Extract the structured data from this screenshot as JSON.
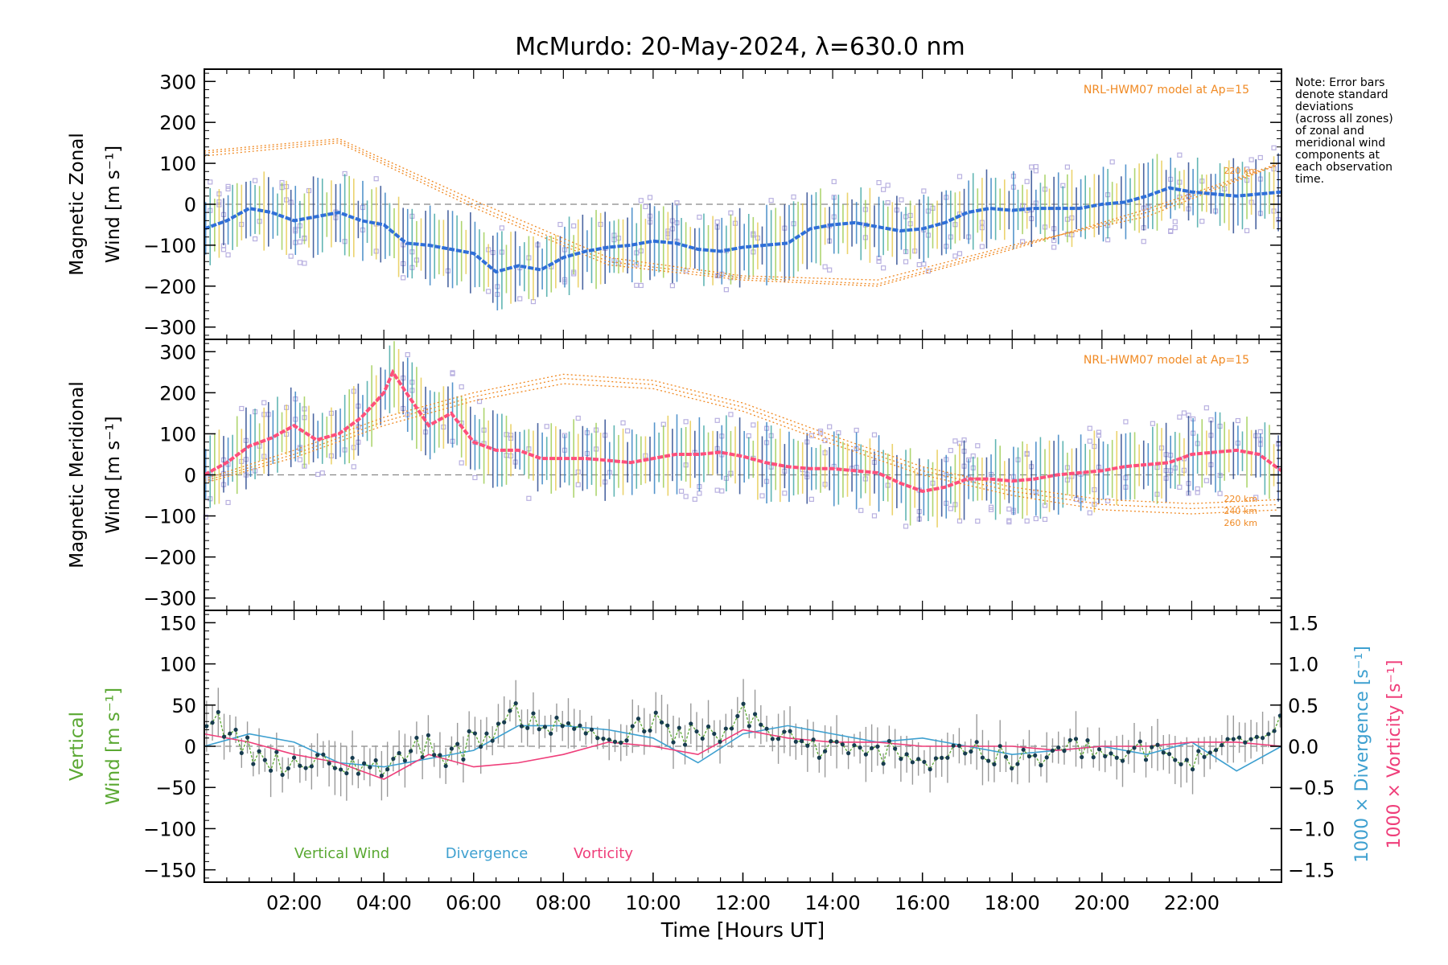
{
  "title": "McMurdo: 20-May-2024, λ=630.0 nm",
  "note_lines": [
    "Note: Error bars",
    "denote standard",
    "deviations",
    "(across all zones)",
    "of zonal and",
    "meridional wind",
    "components at",
    "each observation",
    "time."
  ],
  "colors": {
    "axis": "#000000",
    "model": "#f08a24",
    "zonal": "#2f6fd8",
    "zonal_light": "#6fb6e8",
    "meridional": "#ff4f7b",
    "vertical": "#5aa832",
    "divergence": "#3ea0d0",
    "vorticity": "#ef3e7a",
    "zone_points": "#b8b0e0",
    "errorbar": "#4a4a4a",
    "dash": "#888888"
  },
  "chart_data": [
    {
      "type": "line",
      "name": "zonal",
      "ylabel_lines": [
        "Magnetic Zonal",
        "Wind [m s⁻¹]"
      ],
      "ylim": [
        -330,
        330
      ],
      "yticks": [
        -300,
        -200,
        -100,
        0,
        100,
        200,
        300
      ],
      "xlim": [
        0.0,
        24.0
      ],
      "model_label": "NRL-HWM07 model at Ap=15",
      "model_alt_labels": [
        "220 km"
      ],
      "series": [
        {
          "x": [
            0.0,
            0.5,
            1.0,
            1.5,
            2.0,
            2.5,
            3.0,
            3.5,
            4.0,
            4.5,
            5.0,
            5.5,
            6.0,
            6.5,
            7.0,
            7.5,
            8.0,
            8.5,
            9.0,
            9.5,
            10.0,
            10.5,
            11.0,
            11.5,
            12.0,
            12.5,
            13.0,
            13.5,
            14.0,
            14.5,
            15.0,
            15.5,
            16.0,
            16.5,
            17.0,
            17.5,
            18.0,
            18.5,
            19.0,
            19.5,
            20.0,
            20.5,
            21.0,
            21.5,
            22.0,
            22.5,
            23.0,
            23.5,
            24.0
          ],
          "y": [
            -60,
            -40,
            -10,
            -20,
            -40,
            -30,
            -20,
            -40,
            -50,
            -95,
            -100,
            -110,
            -120,
            -165,
            -150,
            -160,
            -130,
            -115,
            -105,
            -100,
            -90,
            -95,
            -110,
            -115,
            -105,
            -100,
            -95,
            -60,
            -50,
            -45,
            -55,
            -65,
            -60,
            -45,
            -20,
            -10,
            -15,
            -10,
            -10,
            -10,
            0,
            5,
            20,
            40,
            30,
            25,
            20,
            25,
            30
          ]
        }
      ],
      "model": [
        {
          "alt": "220 km",
          "x": [
            0,
            3,
            6,
            9,
            12,
            15,
            18,
            21,
            24
          ],
          "y": [
            130,
            160,
            10,
            -130,
            -175,
            -185,
            -100,
            -30,
            100
          ]
        },
        {
          "alt": "240 km",
          "x": [
            0,
            3,
            6,
            9,
            12,
            15,
            18,
            21,
            24
          ],
          "y": [
            125,
            155,
            0,
            -140,
            -180,
            -195,
            -105,
            -20,
            100
          ]
        },
        {
          "alt": "260 km",
          "x": [
            0,
            3,
            6,
            9,
            12,
            15,
            18,
            21,
            24
          ],
          "y": [
            118,
            150,
            -8,
            -148,
            -185,
            -200,
            -110,
            -12,
            102
          ]
        }
      ]
    },
    {
      "type": "line",
      "name": "meridional",
      "ylabel_lines": [
        "Magnetic Meridional",
        "Wind [m s⁻¹]"
      ],
      "ylim": [
        -330,
        330
      ],
      "yticks": [
        -300,
        -200,
        -100,
        0,
        100,
        200,
        300
      ],
      "xlim": [
        0.0,
        24.0
      ],
      "model_label": "NRL-HWM07 model at Ap=15",
      "model_alt_labels": [
        "220 km",
        "240 km",
        "260 km"
      ],
      "series": [
        {
          "x": [
            0.0,
            0.5,
            1.0,
            1.5,
            2.0,
            2.5,
            3.0,
            3.5,
            4.0,
            4.2,
            4.5,
            5.0,
            5.5,
            6.0,
            6.5,
            7.0,
            7.5,
            8.0,
            8.5,
            9.0,
            9.5,
            10.0,
            10.5,
            11.0,
            11.5,
            12.0,
            12.5,
            13.0,
            13.5,
            14.0,
            14.5,
            15.0,
            15.5,
            16.0,
            16.5,
            17.0,
            17.5,
            18.0,
            18.5,
            19.0,
            19.5,
            20.0,
            20.5,
            21.0,
            21.5,
            22.0,
            22.5,
            23.0,
            23.5,
            24.0
          ],
          "y": [
            0,
            30,
            70,
            90,
            120,
            85,
            100,
            140,
            200,
            250,
            200,
            120,
            150,
            80,
            60,
            60,
            40,
            40,
            40,
            35,
            30,
            40,
            50,
            50,
            55,
            45,
            30,
            20,
            15,
            15,
            10,
            5,
            -20,
            -40,
            -30,
            -10,
            -10,
            -15,
            -10,
            0,
            5,
            10,
            20,
            25,
            30,
            50,
            55,
            60,
            50,
            10
          ]
        }
      ],
      "model": [
        {
          "alt": "220 km",
          "x": [
            0,
            2,
            4,
            6,
            8,
            10,
            12,
            14,
            16,
            18,
            20,
            22,
            24
          ],
          "y": [
            -10,
            60,
            140,
            200,
            245,
            230,
            175,
            95,
            20,
            -30,
            -60,
            -70,
            -60
          ]
        },
        {
          "alt": "240 km",
          "x": [
            0,
            2,
            4,
            6,
            8,
            10,
            12,
            14,
            16,
            18,
            20,
            22,
            24
          ],
          "y": [
            -15,
            50,
            130,
            190,
            235,
            220,
            165,
            85,
            10,
            -40,
            -72,
            -82,
            -72
          ]
        },
        {
          "alt": "260 km",
          "x": [
            0,
            2,
            4,
            6,
            8,
            10,
            12,
            14,
            16,
            18,
            20,
            22,
            24
          ],
          "y": [
            -20,
            42,
            120,
            180,
            222,
            210,
            155,
            75,
            0,
            -50,
            -85,
            -95,
            -85
          ]
        }
      ]
    },
    {
      "type": "line",
      "name": "vertical",
      "ylabel_left": [
        "Vertical",
        "Wind [m s⁻¹]"
      ],
      "ylabel_right": [
        "1000 × Divergence [s⁻¹]",
        "1000 × Vorticity [s⁻¹]"
      ],
      "ylim": [
        -165,
        165
      ],
      "yticks": [
        -150,
        -100,
        -50,
        0,
        50,
        100,
        150
      ],
      "y2lim": [
        -1.65,
        1.65
      ],
      "y2ticks": [
        -1.5,
        -1.0,
        -0.5,
        0.0,
        0.5,
        1.0,
        1.5
      ],
      "y2ticklabels": [
        "−1.5",
        "−1.0",
        "−0.5",
        "0.0",
        "0.5",
        "1.0",
        "1.5"
      ],
      "xlim": [
        0.0,
        24.0
      ],
      "xticks": [
        2,
        4,
        6,
        8,
        10,
        12,
        14,
        16,
        18,
        20,
        22
      ],
      "xticklabels": [
        "02:00",
        "04:00",
        "06:00",
        "08:00",
        "10:00",
        "12:00",
        "14:00",
        "16:00",
        "18:00",
        "20:00",
        "22:00"
      ],
      "xlabel": "Time [Hours UT]",
      "legend": [
        "Vertical Wind",
        "Divergence",
        "Vorticity"
      ],
      "series": [
        {
          "name": "Vertical Wind",
          "x": [
            0.0,
            0.5,
            1.0,
            1.5,
            2.0,
            2.5,
            3.0,
            3.5,
            4.0,
            4.5,
            5.0,
            5.5,
            6.0,
            6.5,
            7.0,
            7.5,
            8.0,
            8.5,
            9.0,
            9.5,
            10.0,
            10.5,
            11.0,
            11.5,
            12.0,
            12.5,
            13.0,
            13.5,
            14.0,
            14.5,
            15.0,
            15.5,
            16.0,
            16.5,
            17.0,
            17.5,
            18.0,
            18.5,
            19.0,
            19.5,
            20.0,
            20.5,
            21.0,
            21.5,
            22.0,
            22.5,
            23.0,
            23.5,
            24.0
          ],
          "y": [
            40,
            20,
            -5,
            -15,
            -25,
            -20,
            -30,
            -20,
            -25,
            -10,
            5,
            -15,
            10,
            20,
            40,
            30,
            20,
            25,
            5,
            15,
            30,
            10,
            20,
            0,
            45,
            20,
            10,
            0,
            -5,
            -10,
            -10,
            0,
            -20,
            -10,
            0,
            -10,
            -20,
            -15,
            -10,
            0,
            -10,
            -15,
            -5,
            -15,
            -20,
            -10,
            15,
            20,
            35
          ]
        },
        {
          "name": "Divergence",
          "x": [
            0,
            1,
            2,
            3,
            4,
            5,
            6,
            7,
            8,
            9,
            10,
            11,
            12,
            13,
            14,
            15,
            16,
            17,
            18,
            19,
            20,
            21,
            22,
            23,
            24
          ],
          "y": [
            0.0,
            0.15,
            0.05,
            -0.2,
            -0.25,
            -0.15,
            -0.05,
            0.25,
            0.25,
            0.2,
            0.1,
            -0.2,
            0.15,
            0.25,
            0.15,
            0.05,
            0.1,
            0.0,
            -0.1,
            -0.05,
            0.0,
            -0.1,
            0.05,
            -0.3,
            0.0
          ]
        },
        {
          "name": "Vorticity",
          "x": [
            0,
            1,
            2,
            3,
            4,
            5,
            6,
            7,
            8,
            9,
            10,
            11,
            12,
            13,
            14,
            15,
            16,
            17,
            18,
            19,
            20,
            21,
            22,
            23,
            24
          ],
          "y": [
            0.15,
            0.05,
            -0.1,
            -0.2,
            -0.4,
            -0.1,
            -0.25,
            -0.2,
            -0.1,
            0.05,
            0.0,
            -0.1,
            0.2,
            0.1,
            0.05,
            0.05,
            0.0,
            0.0,
            0.0,
            -0.05,
            0.0,
            0.0,
            0.05,
            0.05,
            0.0
          ]
        }
      ]
    }
  ]
}
